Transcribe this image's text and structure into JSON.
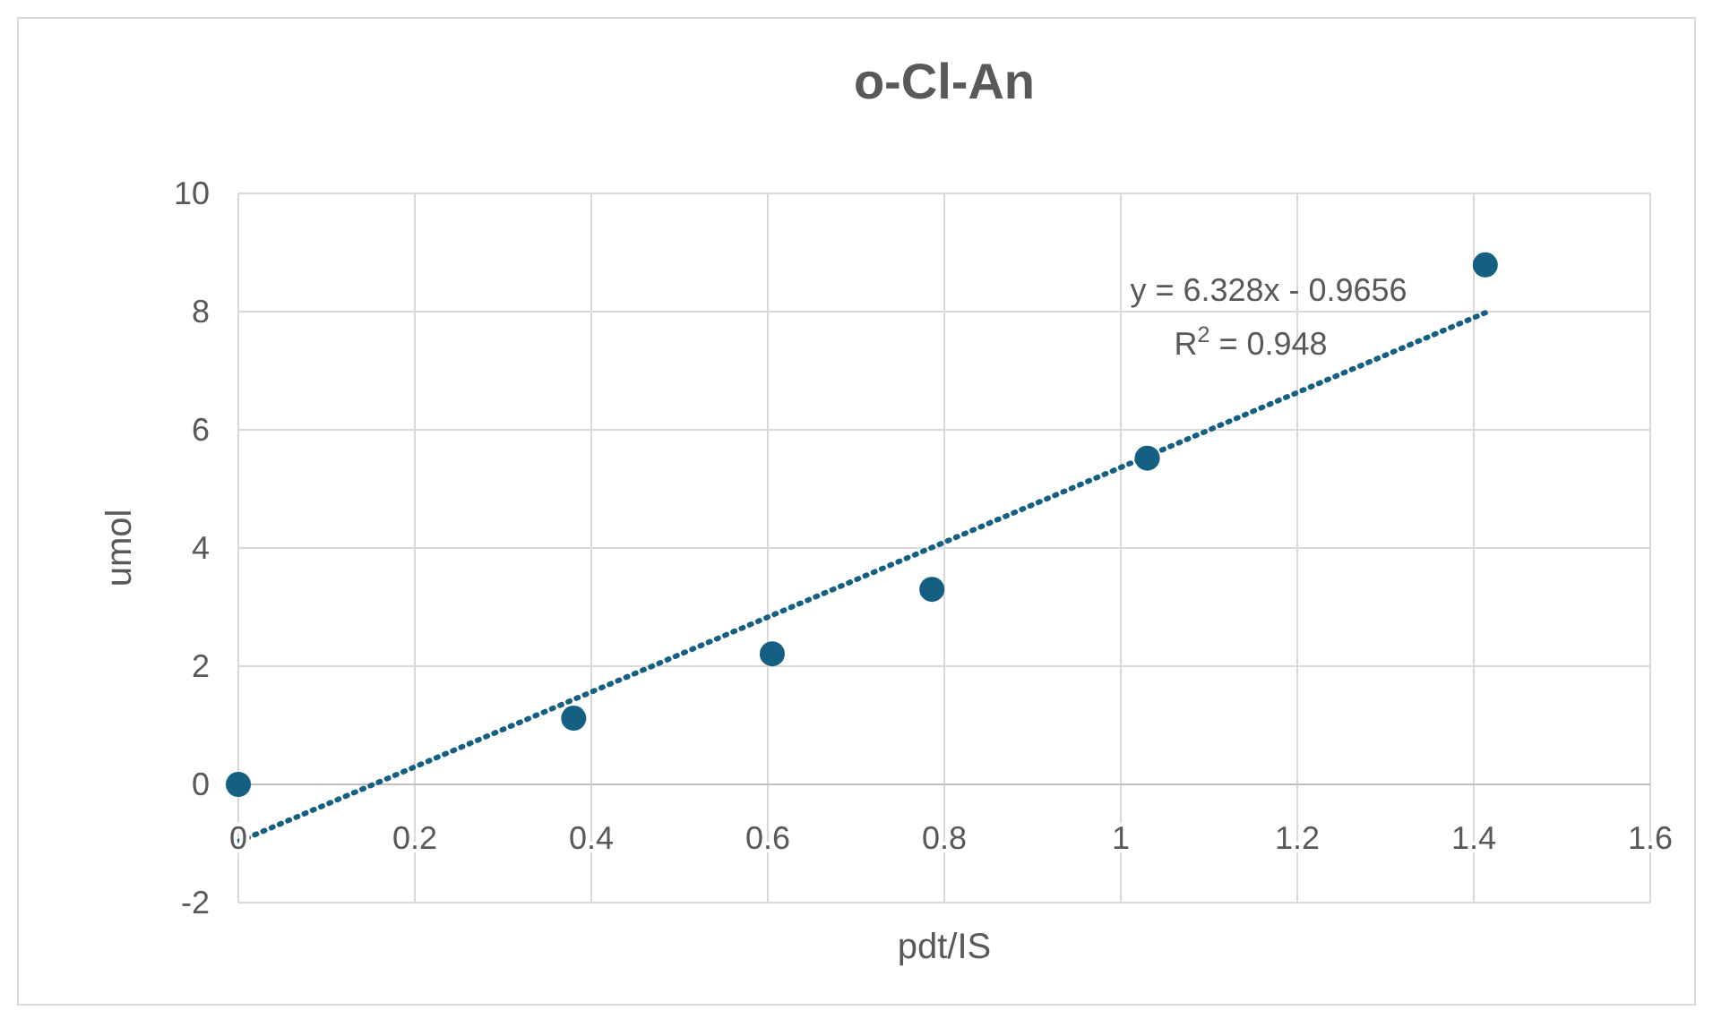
{
  "chart_data": {
    "type": "scatter",
    "title": "o-Cl-An",
    "xlabel": "pdt/IS",
    "ylabel": "umol",
    "xlim": [
      0,
      1.6
    ],
    "xticks": [
      0,
      0.2,
      0.4,
      0.6,
      0.8,
      1,
      1.2,
      1.4,
      1.6
    ],
    "ylim": [
      -2,
      10
    ],
    "yticks": [
      -2,
      0,
      2,
      4,
      6,
      8,
      10
    ],
    "grid": true,
    "marker": "circle",
    "series": [
      {
        "color": "#156082",
        "x": [
          0,
          0.38,
          0.605,
          0.786,
          1.03,
          1.413
        ],
        "values": [
          0,
          1.12,
          2.21,
          3.3,
          5.52,
          8.79
        ]
      },
      {
        "type": "line",
        "color": "#156082",
        "line_style": "dotted",
        "marker": "none",
        "x": [
          0,
          1.413
        ],
        "values": [
          -0.97,
          7.98
        ]
      }
    ],
    "annotations": [
      "y = 6.328x - 0.9656",
      "R$^{2}$ = 0.948"
    ]
  }
}
